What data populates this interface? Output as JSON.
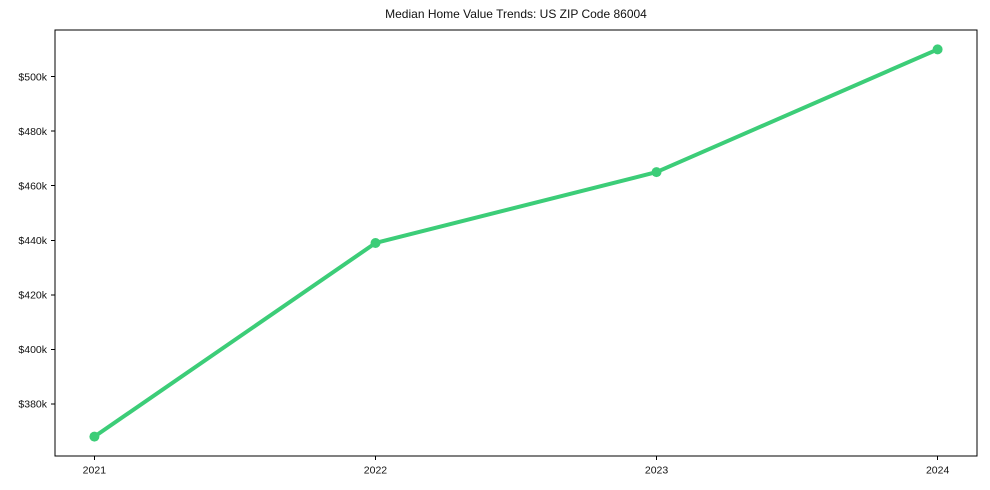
{
  "colors": {
    "line": "#3ccd78",
    "marker": "#3ccd78",
    "spine": "#000000",
    "text": "#111111",
    "background": "#ffffff"
  },
  "chart_data": {
    "type": "line",
    "title": "Median Home Value Trends: US ZIP Code 86004",
    "x": [
      2021,
      2022,
      2023,
      2024
    ],
    "x_tick_labels": [
      "2021",
      "2022",
      "2023",
      "2024"
    ],
    "values": [
      368000,
      439000,
      465000,
      510000
    ],
    "values_note": "USD, read from axis: ~$368k, ~$439k, ~$465k, ~$510k",
    "y_ticks": [
      380000,
      400000,
      420000,
      440000,
      460000,
      480000,
      500000
    ],
    "y_tick_labels": [
      "$380k",
      "$400k",
      "$420k",
      "$440k",
      "$460k",
      "$480k",
      "$500k"
    ],
    "xlim": [
      2020.86,
      2024.14
    ],
    "ylim": [
      360900,
      517100
    ],
    "xlabel": "",
    "ylabel": "",
    "grid": false,
    "legend": "none",
    "marker": "circle"
  }
}
